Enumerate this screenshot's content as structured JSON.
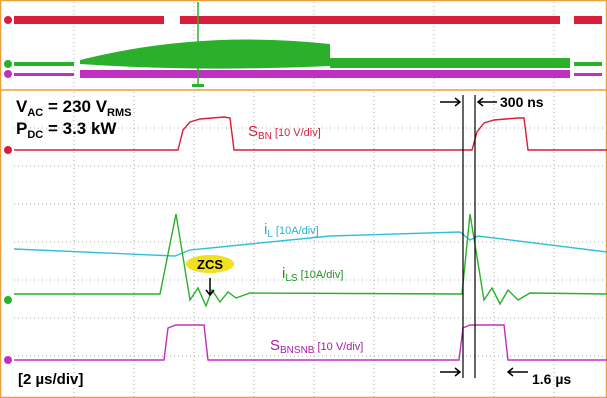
{
  "conditions": [
    {
      "text": "V",
      "sub": "AC",
      "rest": " = 230 V",
      "rest_sub": "RMS"
    },
    {
      "text": "P",
      "sub": "DC",
      "rest": " = 3.3 kW"
    }
  ],
  "signals": [
    {
      "text": "S",
      "sub": "BN",
      "scale": "[10 V/div]"
    },
    {
      "text": "i",
      "sub": "L",
      "scale": "[10A/div]"
    },
    {
      "text": "i",
      "sub": "LS",
      "scale": "[10A/div]"
    },
    {
      "text": "S",
      "sub": "BNSNB",
      "scale": "[10 V/div]"
    }
  ],
  "zcs": "ZCS",
  "timebase": "[2 µs/div]",
  "dead_time": "300 ns",
  "pulse_width": "1.6 µs"
}
